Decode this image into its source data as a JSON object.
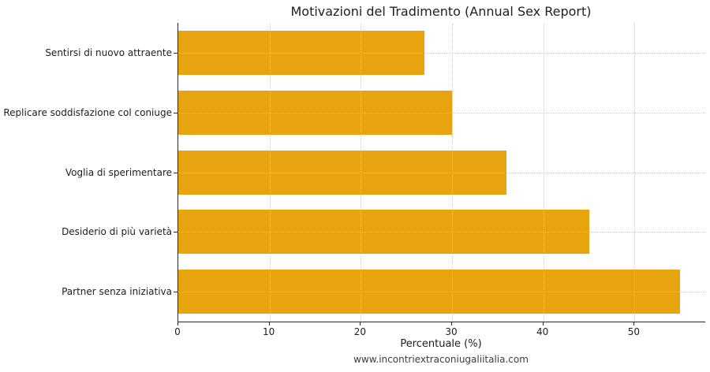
{
  "chart_data": {
    "type": "bar",
    "orientation": "horizontal",
    "title": "Motivazioni del Tradimento (Annual Sex Report)",
    "categories": [
      "Sentirsi di nuovo attraente",
      "Replicare soddisfazione col coniuge",
      "Voglia di sperimentare",
      "Desiderio di più varietà",
      "Partner senza iniziativa"
    ],
    "values": [
      27,
      30,
      36,
      45,
      55
    ],
    "xlabel": "Percentuale (%)",
    "ylabel": "",
    "xlim": [
      0,
      57.75
    ],
    "xticks": [
      0,
      10,
      20,
      30,
      40,
      50
    ],
    "grid": true,
    "legend": null,
    "bar_color": "#E8A40E",
    "background_color": "#ffffff"
  },
  "footer": {
    "url": "www.incontriextraconiugaliitalia.com"
  }
}
